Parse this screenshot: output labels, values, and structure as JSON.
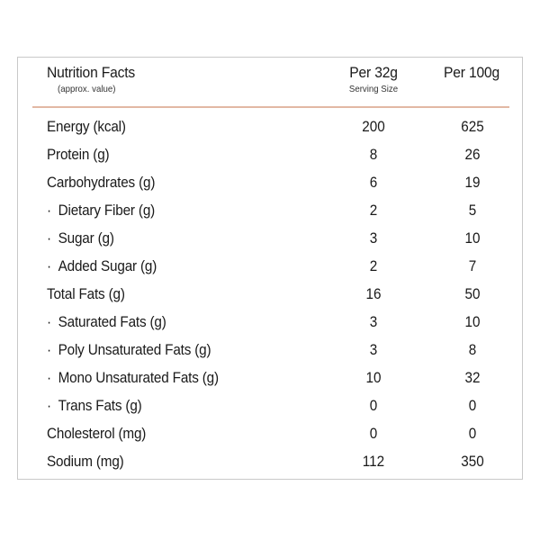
{
  "header": {
    "title": "Nutrition Facts",
    "subtitle": "(approx. value)",
    "col1_label": "Per 32g",
    "col1_sublabel": "Serving Size",
    "col2_label": "Per 100g"
  },
  "colors": {
    "divider": "#e2b8a4",
    "border": "#c9c9c9",
    "text": "#1a1a1a"
  },
  "rows": [
    {
      "label": "Energy (kcal)",
      "per_serving": "200",
      "per_100g": "625",
      "sub": false
    },
    {
      "label": "Protein (g)",
      "per_serving": "8",
      "per_100g": "26",
      "sub": false
    },
    {
      "label": "Carbohydrates (g)",
      "per_serving": "6",
      "per_100g": "19",
      "sub": false
    },
    {
      "label": "Dietary Fiber (g)",
      "per_serving": "2",
      "per_100g": "5",
      "sub": true
    },
    {
      "label": "Sugar (g)",
      "per_serving": "3",
      "per_100g": "10",
      "sub": true
    },
    {
      "label": "Added Sugar (g)",
      "per_serving": "2",
      "per_100g": "7",
      "sub": true
    },
    {
      "label": "Total Fats (g)",
      "per_serving": "16",
      "per_100g": "50",
      "sub": false
    },
    {
      "label": "Saturated Fats (g)",
      "per_serving": "3",
      "per_100g": "10",
      "sub": true
    },
    {
      "label": "Poly Unsaturated Fats (g)",
      "per_serving": "3",
      "per_100g": "8",
      "sub": true
    },
    {
      "label": "Mono Unsaturated Fats (g)",
      "per_serving": "10",
      "per_100g": "32",
      "sub": true
    },
    {
      "label": "Trans Fats (g)",
      "per_serving": "0",
      "per_100g": "0",
      "sub": true
    },
    {
      "label": "Cholesterol (mg)",
      "per_serving": "0",
      "per_100g": "0",
      "sub": false
    },
    {
      "label": "Sodium (mg)",
      "per_serving": "112",
      "per_100g": "350",
      "sub": false
    }
  ],
  "bullet": "·"
}
